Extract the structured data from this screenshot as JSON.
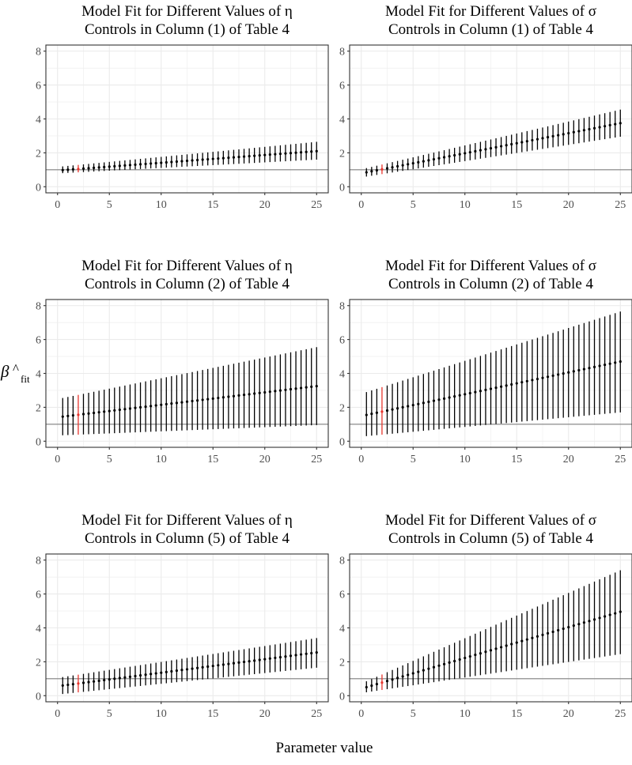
{
  "figure": {
    "ylabel_main": "β",
    "ylabel_sub": "fit",
    "xlabel": "Parameter value"
  },
  "style": {
    "point_color": "#000000",
    "highlight_color": "#e8352d",
    "reference_line_color": "#7f7f7f",
    "grid_color": "#ebebeb",
    "panel_border_color": "#333333"
  },
  "chart_data": [
    {
      "type": "scatter",
      "title": [
        "Model Fit for Different Values of η",
        "Controls in Column (1) of Table 4"
      ],
      "xlim": [
        0,
        25
      ],
      "ylim": [
        0,
        8
      ],
      "xticks": [
        0,
        5,
        10,
        15,
        20,
        25
      ],
      "yticks": [
        0,
        2,
        4,
        6,
        8
      ],
      "grid": true,
      "reference_line": 1,
      "highlight_x": 2,
      "x_start": 0.5,
      "x_end": 25,
      "n_points": 50,
      "estimate": {
        "start": 0.98,
        "end": 2.1
      },
      "lower": {
        "start": 0.8,
        "end": 1.6
      },
      "upper": {
        "start": 1.2,
        "end": 2.65
      }
    },
    {
      "type": "scatter",
      "title": [
        "Model Fit for Different Values of σ",
        "Controls in Column (1) of Table 4"
      ],
      "xlim": [
        0,
        25
      ],
      "ylim": [
        0,
        8
      ],
      "xticks": [
        0,
        5,
        10,
        15,
        20,
        25
      ],
      "yticks": [
        0,
        2,
        4,
        6,
        8
      ],
      "grid": true,
      "reference_line": 1,
      "highlight_x": 2,
      "x_start": 0.5,
      "x_end": 25,
      "n_points": 50,
      "estimate": {
        "start": 0.85,
        "end": 3.75
      },
      "lower": {
        "start": 0.6,
        "end": 2.95
      },
      "upper": {
        "start": 1.1,
        "end": 4.55
      }
    },
    {
      "type": "scatter",
      "title": [
        "Model Fit for Different Values of η",
        "Controls in Column (2) of Table 4"
      ],
      "xlim": [
        0,
        25
      ],
      "ylim": [
        0,
        8
      ],
      "xticks": [
        0,
        5,
        10,
        15,
        20,
        25
      ],
      "yticks": [
        0,
        2,
        4,
        6,
        8
      ],
      "grid": true,
      "reference_line": 1,
      "highlight_x": 2,
      "x_start": 0.5,
      "x_end": 25,
      "n_points": 50,
      "estimate": {
        "start": 1.45,
        "end": 3.25
      },
      "lower": {
        "start": 0.35,
        "end": 0.95
      },
      "upper": {
        "start": 2.55,
        "end": 5.55
      }
    },
    {
      "type": "scatter",
      "title": [
        "Model Fit for Different Values of σ",
        "Controls in Column (2) of Table 4"
      ],
      "xlim": [
        0,
        25
      ],
      "ylim": [
        0,
        8
      ],
      "xticks": [
        0,
        5,
        10,
        15,
        20,
        25
      ],
      "yticks": [
        0,
        2,
        4,
        6,
        8
      ],
      "grid": true,
      "reference_line": 1,
      "highlight_x": 2,
      "x_start": 0.5,
      "x_end": 25,
      "n_points": 50,
      "estimate": {
        "start": 1.55,
        "end": 4.7
      },
      "lower": {
        "start": 0.3,
        "end": 1.7
      },
      "upper": {
        "start": 2.9,
        "end": 7.65
      }
    },
    {
      "type": "scatter",
      "title": [
        "Model Fit for Different Values of η",
        "Controls in Column (5) of Table 4"
      ],
      "xlim": [
        0,
        25
      ],
      "ylim": [
        0,
        8
      ],
      "xticks": [
        0,
        5,
        10,
        15,
        20,
        25
      ],
      "yticks": [
        0,
        2,
        4,
        6,
        8
      ],
      "grid": true,
      "reference_line": 1,
      "highlight_x": 2,
      "x_start": 0.5,
      "x_end": 25,
      "n_points": 50,
      "estimate": {
        "start": 0.6,
        "end": 2.55
      },
      "lower": {
        "start": 0.1,
        "end": 1.65
      },
      "upper": {
        "start": 1.1,
        "end": 3.4
      }
    },
    {
      "type": "scatter",
      "title": [
        "Model Fit for Different Values of σ",
        "Controls in Column (5) of Table 4"
      ],
      "xlim": [
        0,
        25
      ],
      "ylim": [
        0,
        8
      ],
      "xticks": [
        0,
        5,
        10,
        15,
        20,
        25
      ],
      "yticks": [
        0,
        2,
        4,
        6,
        8
      ],
      "grid": true,
      "reference_line": 1,
      "highlight_x": 2,
      "x_start": 0.5,
      "x_end": 25,
      "n_points": 50,
      "estimate": {
        "start": 0.5,
        "end": 4.95
      },
      "lower": {
        "start": 0.2,
        "end": 2.45
      },
      "upper": {
        "start": 0.85,
        "end": 7.4
      }
    }
  ]
}
